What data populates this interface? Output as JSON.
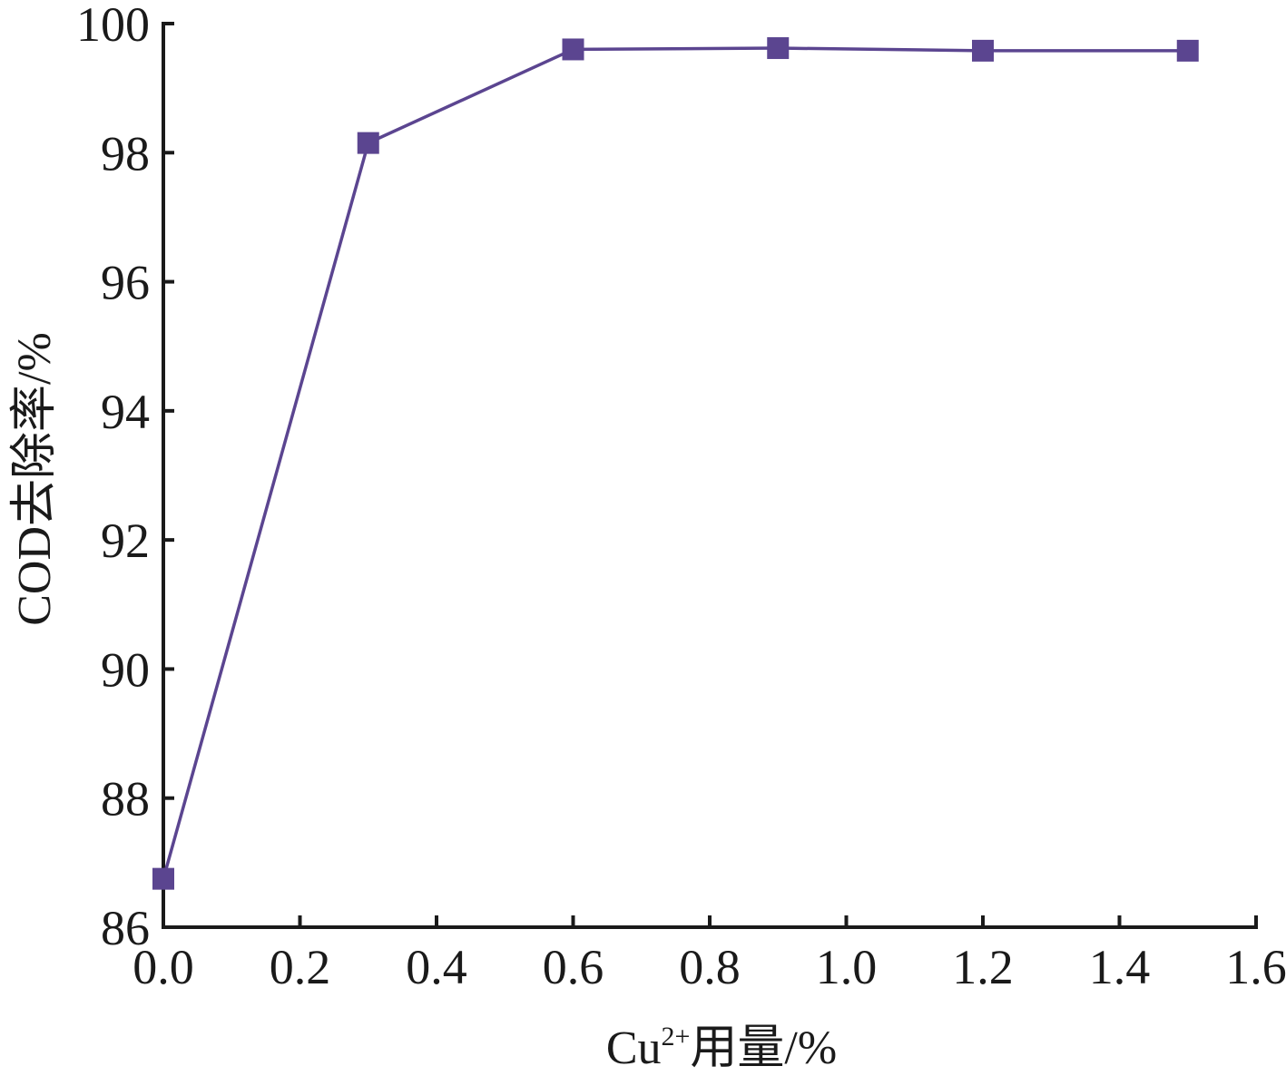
{
  "chart_data": {
    "type": "line",
    "title": "",
    "xlabel": {
      "prefix": "Cu",
      "superscript": "2+",
      "suffix": "用量/%"
    },
    "ylabel": "COD去除率/%",
    "xlim": [
      0.0,
      1.6
    ],
    "ylim": [
      86,
      100
    ],
    "x_ticks": [
      0.0,
      0.2,
      0.4,
      0.6,
      0.8,
      1.0,
      1.2,
      1.4,
      1.6
    ],
    "x_tick_labels": [
      "0.0",
      "0.2",
      "0.4",
      "0.6",
      "0.8",
      "1.0",
      "1.2",
      "1.4",
      "1.6"
    ],
    "y_ticks": [
      86,
      88,
      90,
      92,
      94,
      96,
      98,
      100
    ],
    "y_tick_labels": [
      "86",
      "88",
      "90",
      "92",
      "94",
      "96",
      "98",
      "100"
    ],
    "grid": false,
    "series": [
      {
        "color": "#5b4590",
        "marker": "square",
        "x": [
          0.0,
          0.3,
          0.6,
          0.9,
          1.2,
          1.5
        ],
        "y": [
          86.75,
          98.15,
          99.6,
          99.62,
          99.58,
          99.58
        ]
      }
    ]
  }
}
